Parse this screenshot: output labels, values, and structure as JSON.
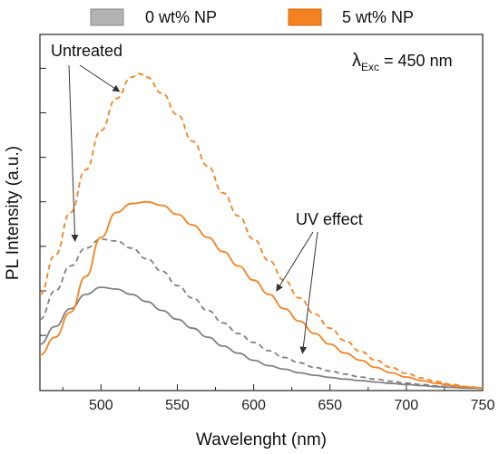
{
  "chart_data": {
    "type": "line",
    "title": "",
    "xlabel": "Wavelenght (nm)",
    "ylabel": "PL Intensity (a.u.)",
    "xlim": [
      460,
      750
    ],
    "ylim": [
      0,
      1
    ],
    "x_ticks": [
      500,
      550,
      600,
      650,
      700,
      750
    ],
    "y_tick_labels_shown": false,
    "grid": false,
    "legend": {
      "placement": "top",
      "entries": [
        {
          "label": "0 wt% NP",
          "color": "#808080"
        },
        {
          "label": "5 wt% NP",
          "color": "#f58220"
        }
      ]
    },
    "series": [
      {
        "group": "0 wt% NP",
        "style": "solid",
        "color": "#808080",
        "x": [
          460,
          470,
          480,
          490,
          500,
          510,
          520,
          530,
          540,
          550,
          560,
          570,
          580,
          590,
          600,
          610,
          620,
          630,
          640,
          650,
          660,
          670,
          680,
          690,
          700,
          710,
          720,
          730,
          740,
          750
        ],
        "y": [
          0.13,
          0.18,
          0.23,
          0.27,
          0.29,
          0.285,
          0.27,
          0.25,
          0.225,
          0.2,
          0.175,
          0.15,
          0.125,
          0.105,
          0.085,
          0.07,
          0.06,
          0.05,
          0.043,
          0.037,
          0.032,
          0.028,
          0.024,
          0.02,
          0.017,
          0.014,
          0.011,
          0.009,
          0.007,
          0.006
        ]
      },
      {
        "group": "0 wt% NP",
        "style": "dashed",
        "color": "#808080",
        "x": [
          460,
          470,
          480,
          490,
          500,
          510,
          520,
          530,
          540,
          550,
          560,
          570,
          580,
          590,
          600,
          610,
          620,
          630,
          640,
          650,
          660,
          670,
          680,
          690,
          700,
          710,
          720,
          730,
          740,
          750
        ],
        "y": [
          0.2,
          0.28,
          0.35,
          0.4,
          0.425,
          0.42,
          0.4,
          0.37,
          0.335,
          0.295,
          0.26,
          0.225,
          0.19,
          0.16,
          0.135,
          0.112,
          0.093,
          0.078,
          0.065,
          0.055,
          0.046,
          0.038,
          0.032,
          0.026,
          0.021,
          0.017,
          0.013,
          0.01,
          0.008,
          0.006
        ]
      },
      {
        "group": "5 wt% NP",
        "style": "solid",
        "color": "#f58220",
        "x": [
          460,
          470,
          480,
          490,
          500,
          510,
          520,
          530,
          540,
          550,
          560,
          570,
          580,
          590,
          600,
          610,
          620,
          630,
          640,
          650,
          660,
          670,
          680,
          690,
          700,
          710,
          720,
          730,
          740,
          750
        ],
        "y": [
          0.1,
          0.15,
          0.22,
          0.32,
          0.43,
          0.5,
          0.525,
          0.53,
          0.52,
          0.495,
          0.465,
          0.43,
          0.39,
          0.35,
          0.31,
          0.27,
          0.23,
          0.195,
          0.16,
          0.13,
          0.105,
          0.085,
          0.065,
          0.05,
          0.038,
          0.028,
          0.02,
          0.014,
          0.01,
          0.007
        ]
      },
      {
        "group": "5 wt% NP",
        "style": "dashed",
        "color": "#f58220",
        "x": [
          460,
          470,
          480,
          490,
          500,
          510,
          520,
          525,
          530,
          540,
          550,
          560,
          570,
          580,
          590,
          600,
          610,
          620,
          630,
          640,
          650,
          660,
          670,
          680,
          690,
          700,
          710,
          720,
          730,
          740,
          750
        ],
        "y": [
          0.27,
          0.38,
          0.5,
          0.62,
          0.73,
          0.82,
          0.88,
          0.89,
          0.88,
          0.835,
          0.775,
          0.7,
          0.63,
          0.555,
          0.49,
          0.425,
          0.365,
          0.31,
          0.26,
          0.215,
          0.175,
          0.14,
          0.11,
          0.085,
          0.065,
          0.048,
          0.035,
          0.025,
          0.017,
          0.011,
          0.007
        ]
      }
    ],
    "annotations": [
      {
        "text": "Untreated",
        "arrows_to": [
          {
            "x": 483,
            "y": 0.42
          },
          {
            "x": 512,
            "y": 0.84
          }
        ]
      },
      {
        "text": "UV effect",
        "arrows_to": [
          {
            "x": 615,
            "y": 0.28
          },
          {
            "x": 632,
            "y": 0.105
          }
        ]
      },
      {
        "text_main": "λ",
        "text_sub": "Exc",
        "text_rest": " = 450 nm"
      }
    ]
  }
}
